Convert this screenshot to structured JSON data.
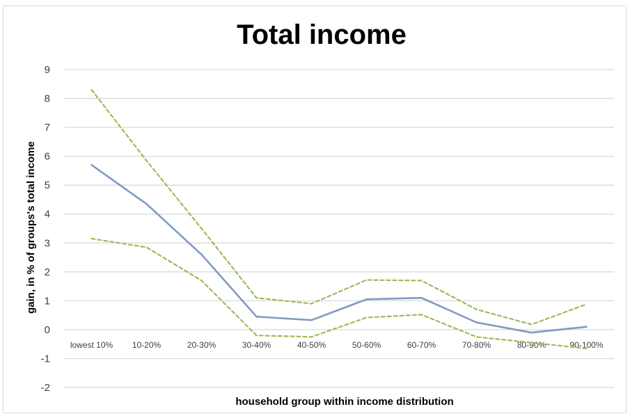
{
  "chart_data": {
    "type": "line",
    "title": "Total income",
    "xlabel": "household group within income distribution",
    "ylabel": "gain, in % of groups's total income",
    "categories": [
      "lowest 10%",
      "10-20%",
      "20-30%",
      "30-40%",
      "40-50%",
      "50-60%",
      "60-70%",
      "70-80%",
      "80-90%",
      "90-100%"
    ],
    "ylim": [
      -2,
      9
    ],
    "yticks": [
      -2,
      -1,
      0,
      1,
      2,
      3,
      4,
      5,
      6,
      7,
      8,
      9
    ],
    "grid": true,
    "legend": "none",
    "series": [
      {
        "color": "#7f9ac3",
        "style": "solid",
        "values": [
          5.7,
          4.35,
          2.6,
          0.45,
          0.33,
          1.05,
          1.1,
          0.25,
          -0.1,
          0.1
        ]
      },
      {
        "color": "#9cbb58",
        "style": "dashed",
        "values": [
          8.3,
          5.85,
          3.5,
          1.1,
          0.9,
          1.72,
          1.7,
          0.7,
          0.18,
          0.88
        ]
      },
      {
        "color": "#9cbb58",
        "style": "dashed",
        "values": [
          3.15,
          2.85,
          1.7,
          -0.2,
          -0.25,
          0.42,
          0.52,
          -0.25,
          -0.45,
          -0.65
        ]
      }
    ]
  }
}
